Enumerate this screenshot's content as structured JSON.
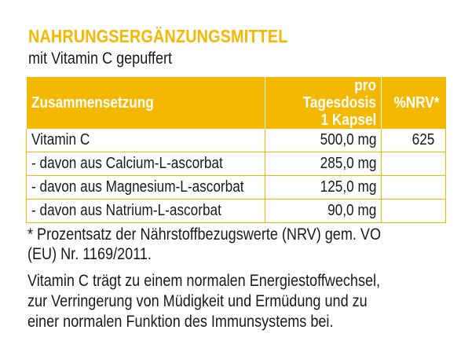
{
  "header": {
    "title": "NAHRUNGSERGÄNZUNGSMITTEL",
    "subtitle": "mit Vitamin C gepuffert"
  },
  "table": {
    "headers": {
      "composition": "Zusammensetzung",
      "amount_line1": "pro Tagesdosis",
      "amount_line2": "1 Kapsel",
      "nrv": "%NRV*"
    },
    "rows": [
      {
        "name": "Vitamin C",
        "amount": "500,0 mg",
        "nrv": "625"
      },
      {
        "name": "- davon aus Calcium-L-ascorbat",
        "amount": "285,0 mg",
        "nrv": ""
      },
      {
        "name": "- davon aus Magnesium-L-ascorbat",
        "amount": "125,0 mg",
        "nrv": ""
      },
      {
        "name": "- davon aus Natrium-L-ascorbat",
        "amount": "90,0 mg",
        "nrv": ""
      }
    ]
  },
  "footnote": {
    "line1": "* Prozentsatz der Nährstoffbezugswerte (NRV) gem. VO",
    "line2": "(EU) Nr. 1169/2011."
  },
  "claim": {
    "line1": "Vitamin C trägt zu einem normalen Energiestoffwechsel,",
    "line2": "zur Verringerung von Müdigkeit und Ermüdung und zu",
    "line3": "einer normalen Funktion des Immunsystems bei."
  },
  "colors": {
    "accent": "#f5b800",
    "text": "#1a1a1a"
  }
}
